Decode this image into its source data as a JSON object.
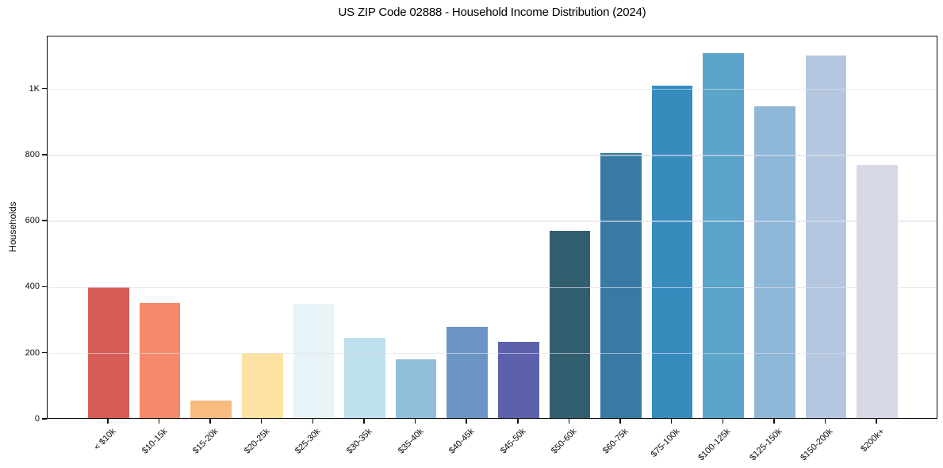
{
  "chart_data": {
    "type": "bar",
    "title": "US ZIP Code 02888 - Household Income Distribution (2024)",
    "xlabel": "",
    "ylabel": "Households",
    "categories": [
      "< $10k",
      "$10-15k",
      "$15-20k",
      "$20-25k",
      "$25-30k",
      "$30-35k",
      "$35-40k",
      "$40-45k",
      "$45-50k",
      "$50-60k",
      "$60-75k",
      "$75-100k",
      "$100-125k",
      "$125-150k",
      "$150-200k",
      "$200k+"
    ],
    "values": [
      397,
      348,
      54,
      196,
      345,
      242,
      178,
      277,
      230,
      567,
      801,
      1006,
      1104,
      945,
      1098,
      766
    ],
    "bar_colors": [
      "#d85c56",
      "#f58a6b",
      "#f9bc80",
      "#fce3a4",
      "#e7f3f7",
      "#bfe0ed",
      "#90bedb",
      "#6c95c6",
      "#5d60ac",
      "#325f70",
      "#387aa4",
      "#378cbe",
      "#5ca5ca",
      "#8eb7d8",
      "#b5c6e0",
      "#d8d9e8"
    ],
    "ylim": [
      0,
      1160
    ],
    "yticks": [
      {
        "value": 0,
        "label": "0"
      },
      {
        "value": 200,
        "label": "200"
      },
      {
        "value": 400,
        "label": "400"
      },
      {
        "value": 600,
        "label": "600"
      },
      {
        "value": 800,
        "label": "800"
      },
      {
        "value": 1000,
        "label": "1K"
      }
    ],
    "grid": "horizontal",
    "gridline_color": "#e9e9ee",
    "legend": "none",
    "background_color": "#ffffff",
    "spine_color": "#0c0c0c"
  }
}
